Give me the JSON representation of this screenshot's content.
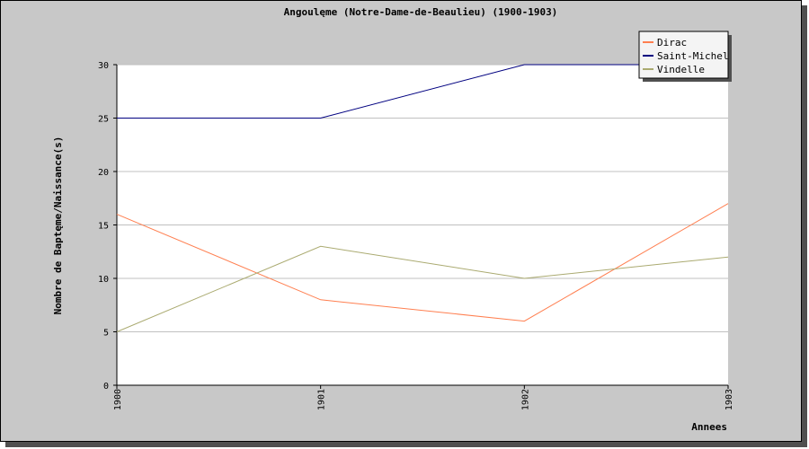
{
  "chart_data": {
    "type": "line",
    "title": "Angoulęme (Notre-Dame-de-Beaulieu) (1900-1903)",
    "xlabel": "Annees",
    "ylabel": "Nombre de Baptęme/Naissance(s)",
    "x": [
      "1900",
      "1901",
      "1902",
      "1903"
    ],
    "ylim": [
      0,
      30
    ],
    "yticks": [
      0,
      5,
      10,
      15,
      20,
      25,
      30
    ],
    "grid": true,
    "legend_position": "top-right",
    "series": [
      {
        "name": "Dirac",
        "color": "#ff7f50",
        "values": [
          16,
          8,
          6,
          17
        ]
      },
      {
        "name": "Saint-Michel",
        "color": "#000080",
        "values": [
          25,
          25,
          30,
          30
        ]
      },
      {
        "name": "Vindelle",
        "color": "#aaaa70",
        "values": [
          5,
          13,
          10,
          12
        ]
      }
    ]
  }
}
